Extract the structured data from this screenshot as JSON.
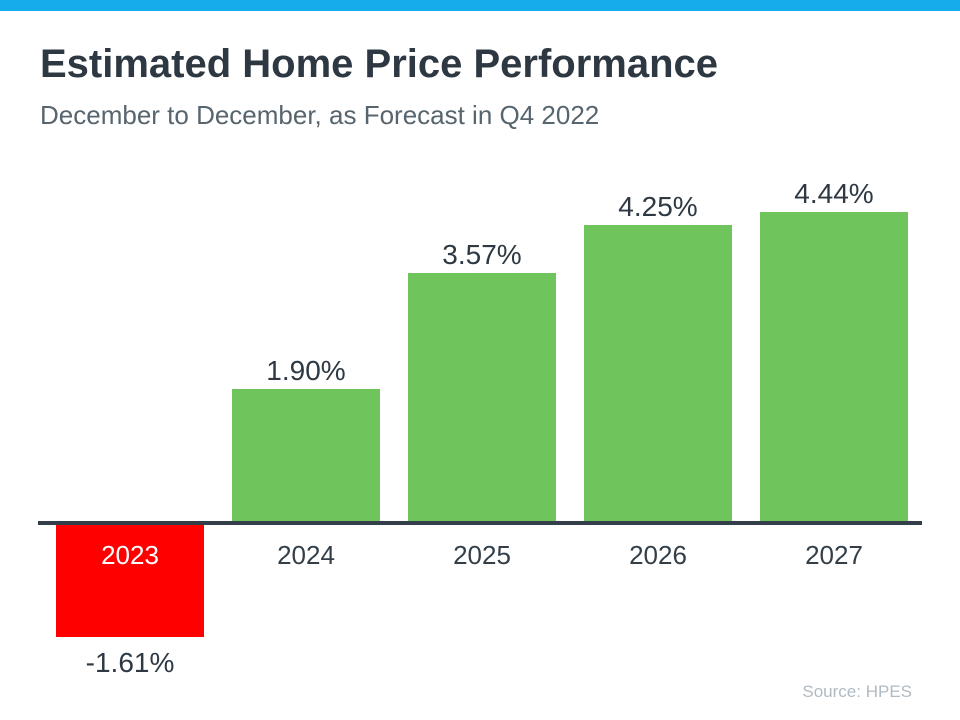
{
  "page": {
    "accent_color": "#16acec",
    "background": "#ffffff"
  },
  "header": {
    "title": "Estimated Home Price Performance",
    "subtitle": "December to December, as Forecast in Q4 2022"
  },
  "footer": {
    "source": "Source: HPES"
  },
  "chart_data": {
    "type": "bar",
    "title": "Estimated Home Price Performance",
    "subtitle": "December to December, as Forecast in Q4 2022",
    "categories": [
      "2023",
      "2024",
      "2025",
      "2026",
      "2027"
    ],
    "values": [
      -1.61,
      1.9,
      3.57,
      4.25,
      4.44
    ],
    "value_labels": [
      "-1.61%",
      "1.90%",
      "3.57%",
      "4.25%",
      "4.44%"
    ],
    "xlabel": "",
    "ylabel": "",
    "ylim": [
      -2,
      5
    ],
    "baseline": 0,
    "grid": false,
    "legend": false,
    "annotations": [
      "Source: HPES"
    ],
    "colors": {
      "positive_bar": "#6fc45c",
      "negative_bar": "#fe0000",
      "axis_line": "#333e48",
      "value_label_text": "#2e3944",
      "category_label_text": "#333e48",
      "category_label_on_negative_bar": "#ffffff"
    }
  }
}
